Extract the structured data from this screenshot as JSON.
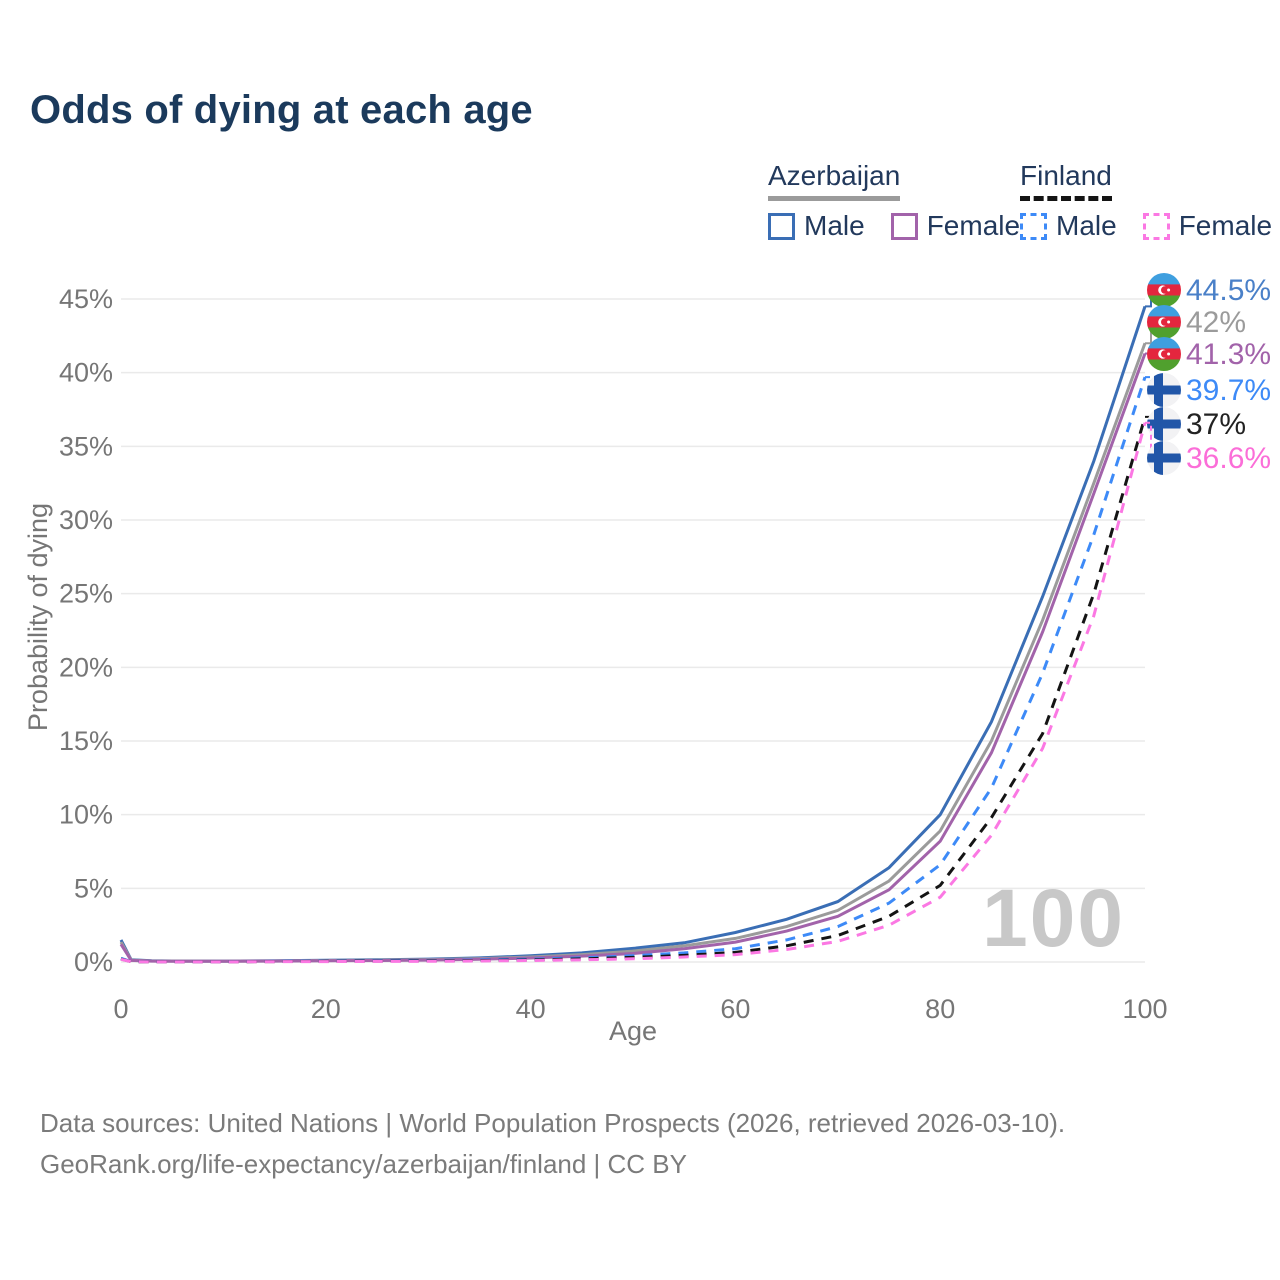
{
  "title": "Odds of dying at each age",
  "legend": {
    "groups": [
      {
        "country": "Azerbaijan",
        "male_label": "Male",
        "female_label": "Female"
      },
      {
        "country": "Finland",
        "male_label": "Male",
        "female_label": "Female"
      }
    ]
  },
  "chart_data": {
    "type": "line",
    "title": "Odds of dying at each age",
    "xlabel": "Age",
    "ylabel": "Probability of dying",
    "xlim": [
      0,
      100
    ],
    "ylim_pct": [
      0,
      45
    ],
    "xticks": [
      0,
      20,
      40,
      60,
      80,
      100
    ],
    "yticks_pct": [
      0,
      5,
      10,
      15,
      20,
      25,
      30,
      35,
      40,
      45
    ],
    "grid": "horizontal",
    "legend_position": "top-right",
    "age_indicator": "100",
    "x_ages": [
      0,
      1,
      3,
      5,
      10,
      15,
      20,
      25,
      30,
      35,
      40,
      45,
      50,
      55,
      60,
      65,
      70,
      75,
      80,
      85,
      90,
      95,
      100
    ],
    "series": [
      {
        "id": "az-male",
        "name": "Azerbaijan Male",
        "country": "Azerbaijan",
        "group": "Male",
        "color": "#3a6eb5",
        "label_color": "#4a80c8",
        "dash": false,
        "flag": "azerbaijan",
        "end_label": "44.5%",
        "values_pct": [
          1.5,
          0.15,
          0.08,
          0.07,
          0.06,
          0.08,
          0.12,
          0.15,
          0.2,
          0.28,
          0.42,
          0.62,
          0.92,
          1.3,
          2.0,
          2.9,
          4.1,
          6.4,
          10.0,
          16.3,
          24.8,
          34.0,
          44.5
        ]
      },
      {
        "id": "az-all",
        "name": "Azerbaijan All",
        "country": "Azerbaijan",
        "group": "All",
        "color": "#9b9b9b",
        "label_color": "#9b9b9b",
        "dash": false,
        "flag": "azerbaijan",
        "end_label": "42%",
        "values_pct": [
          1.35,
          0.13,
          0.07,
          0.06,
          0.05,
          0.07,
          0.1,
          0.12,
          0.16,
          0.23,
          0.34,
          0.5,
          0.74,
          1.1,
          1.6,
          2.4,
          3.5,
          5.5,
          8.9,
          15.0,
          23.2,
          32.5,
          42.0
        ]
      },
      {
        "id": "az-female",
        "name": "Azerbaijan Female",
        "country": "Azerbaijan",
        "group": "Female",
        "color": "#a263aa",
        "label_color": "#a263aa",
        "dash": false,
        "flag": "azerbaijan",
        "end_label": "41.3%",
        "values_pct": [
          1.2,
          0.11,
          0.06,
          0.05,
          0.05,
          0.06,
          0.08,
          0.1,
          0.13,
          0.18,
          0.27,
          0.4,
          0.58,
          0.9,
          1.35,
          2.1,
          3.1,
          4.9,
          8.2,
          14.2,
          22.4,
          31.8,
          41.3
        ]
      },
      {
        "id": "fi-male",
        "name": "Finland Male",
        "country": "Finland",
        "group": "Male",
        "color": "#3d8af7",
        "label_color": "#3d8af7",
        "dash": true,
        "flag": "finland",
        "end_label": "39.7%",
        "values_pct": [
          0.25,
          0.03,
          0.02,
          0.02,
          0.02,
          0.04,
          0.07,
          0.09,
          0.11,
          0.14,
          0.19,
          0.28,
          0.42,
          0.62,
          0.9,
          1.5,
          2.4,
          4.0,
          6.6,
          11.8,
          19.6,
          29.0,
          39.7
        ]
      },
      {
        "id": "fi-all",
        "name": "Finland All",
        "country": "Finland",
        "group": "All",
        "color": "#141414",
        "label_color": "#222222",
        "dash": true,
        "flag": "finland",
        "end_label": "37%",
        "values_pct": [
          0.2,
          0.02,
          0.015,
          0.015,
          0.015,
          0.03,
          0.05,
          0.06,
          0.08,
          0.1,
          0.14,
          0.21,
          0.31,
          0.45,
          0.65,
          1.1,
          1.8,
          3.1,
          5.2,
          9.8,
          15.5,
          25.0,
          37.0
        ]
      },
      {
        "id": "fi-female",
        "name": "Finland Female",
        "country": "Finland",
        "group": "Female",
        "color": "#fb78e3",
        "label_color": "#fb6ed8",
        "dash": true,
        "flag": "finland",
        "end_label": "36.6%",
        "values_pct": [
          0.18,
          0.02,
          0.01,
          0.01,
          0.01,
          0.02,
          0.03,
          0.04,
          0.05,
          0.07,
          0.1,
          0.15,
          0.22,
          0.34,
          0.5,
          0.85,
          1.4,
          2.5,
          4.4,
          8.6,
          14.5,
          23.5,
          36.6
        ]
      }
    ],
    "flags": {
      "azerbaijan": {
        "stripes": [
          "#3f9fdf",
          "#e4263e",
          "#50a02e"
        ],
        "crescent": "#ffffff"
      },
      "finland": {
        "bg": "#f2f2f4",
        "cross": "#2156a8"
      }
    }
  },
  "footer": {
    "line1": "Data sources: United Nations | World Population Prospects (2026, retrieved 2026-03-10).",
    "line2": "GeoRank.org/life-expectancy/azerbaijan/finland | CC BY"
  }
}
